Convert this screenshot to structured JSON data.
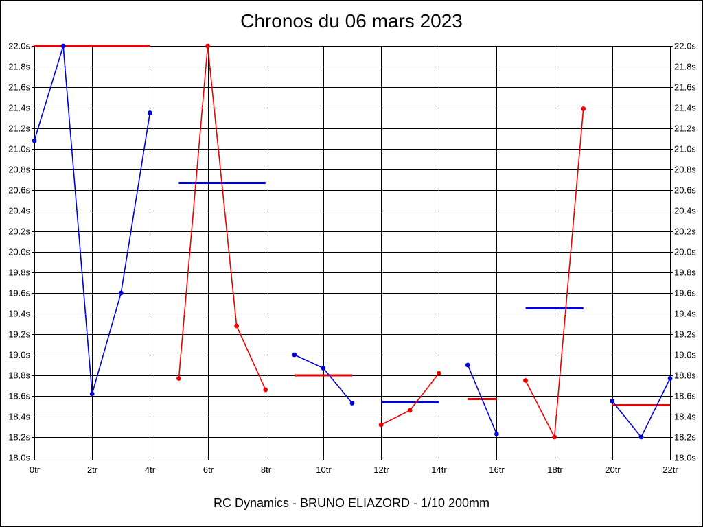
{
  "page": {
    "title": "Chronos du 06 mars 2023",
    "footer": "RC Dynamics - BRUNO ELIAZORD - 1/10 200mm"
  },
  "colors": {
    "blue": "#0000dd",
    "red": "#ee0000",
    "grid": "#000000",
    "background": "#ffffff"
  },
  "chart_data": {
    "type": "line",
    "title": "Chronos du 06 mars 2023",
    "xlim": [
      0,
      22
    ],
    "ylim": [
      18.0,
      22.0
    ],
    "x_ticks": [
      0,
      2,
      4,
      6,
      8,
      10,
      12,
      14,
      16,
      18,
      20,
      22
    ],
    "x_tick_labels": [
      "0tr",
      "2tr",
      "4tr",
      "6tr",
      "8tr",
      "10tr",
      "12tr",
      "14tr",
      "16tr",
      "18tr",
      "20tr",
      "22tr"
    ],
    "y_ticks": [
      18.0,
      18.2,
      18.4,
      18.6,
      18.8,
      19.0,
      19.2,
      19.4,
      19.6,
      19.8,
      20.0,
      20.2,
      20.4,
      20.6,
      20.8,
      21.0,
      21.2,
      21.4,
      21.6,
      21.8,
      22.0
    ],
    "y_tick_labels": [
      "18.0s",
      "18.2s",
      "18.4s",
      "18.6s",
      "18.8s",
      "19.0s",
      "19.2s",
      "19.4s",
      "19.6s",
      "19.8s",
      "20.0s",
      "20.2s",
      "20.4s",
      "20.6s",
      "20.8s",
      "21.0s",
      "21.2s",
      "21.4s",
      "21.6s",
      "21.8s",
      "22.0s"
    ],
    "grid": true,
    "series": [
      {
        "color": "blue",
        "x": [
          0,
          1,
          2,
          3,
          4
        ],
        "y": [
          21.08,
          22.0,
          18.62,
          19.6,
          21.35
        ],
        "mean": 22.0,
        "mean_color": "red"
      },
      {
        "color": "red",
        "x": [
          5,
          6,
          7,
          8
        ],
        "y": [
          18.77,
          22.0,
          19.28,
          18.66
        ],
        "mean": 20.67,
        "mean_color": "blue"
      },
      {
        "color": "blue",
        "x": [
          9,
          10,
          11
        ],
        "y": [
          19.0,
          18.87,
          18.53
        ],
        "mean": 18.8,
        "mean_color": "red"
      },
      {
        "color": "red",
        "x": [
          12,
          13,
          14
        ],
        "y": [
          18.32,
          18.46,
          18.82
        ],
        "mean": 18.54,
        "mean_color": "blue"
      },
      {
        "color": "blue",
        "x": [
          15,
          16
        ],
        "y": [
          18.9,
          18.23
        ],
        "mean": 18.57,
        "mean_color": "red"
      },
      {
        "color": "red",
        "x": [
          17,
          18,
          19
        ],
        "y": [
          18.75,
          18.2,
          21.39
        ],
        "mean": 19.45,
        "mean_color": "blue"
      },
      {
        "color": "blue",
        "x": [
          20,
          21,
          22
        ],
        "y": [
          18.55,
          18.2,
          18.77
        ],
        "mean": 18.51,
        "mean_color": "red"
      }
    ]
  }
}
